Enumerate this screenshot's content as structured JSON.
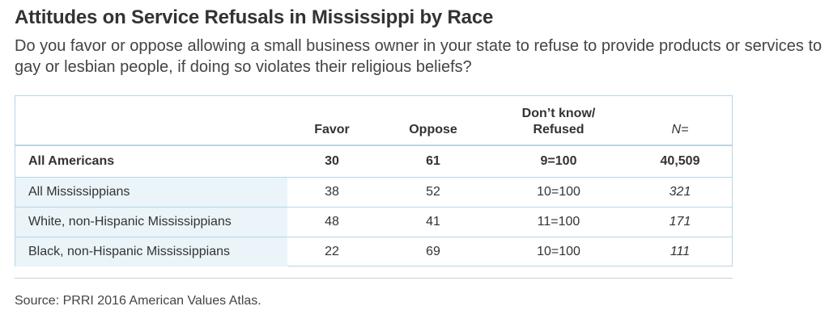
{
  "chart_data": {
    "type": "table",
    "title": "Attitudes on Service Refusals in Mississippi by Race",
    "subtitle": "Do you favor or oppose allowing a small business owner in your state to refuse to provide products or services to gay or lesbian people, if doing so violates their religious beliefs?",
    "columns": {
      "favor": "Favor",
      "oppose": "Oppose",
      "dk_line1": "Don’t know/",
      "dk_line2": "Refused",
      "n": "N="
    },
    "rows": [
      {
        "label": "All Americans",
        "favor": "30",
        "oppose": "61",
        "dk": "9=100",
        "n": "40,509"
      },
      {
        "label": "All Mississippians",
        "favor": "38",
        "oppose": "52",
        "dk": "10=100",
        "n": "321"
      },
      {
        "label": "White, non-Hispanic Mississippians",
        "favor": "48",
        "oppose": "41",
        "dk": "11=100",
        "n": "171"
      },
      {
        "label": "Black, non-Hispanic Mississippians",
        "favor": "22",
        "oppose": "69",
        "dk": "10=100",
        "n": "111"
      }
    ],
    "source": "Source: PRRI 2016 American Values Atlas."
  },
  "colors": {
    "border": "#b9d6e3",
    "label_shade": "#eaf4f9",
    "text": "#333333"
  }
}
